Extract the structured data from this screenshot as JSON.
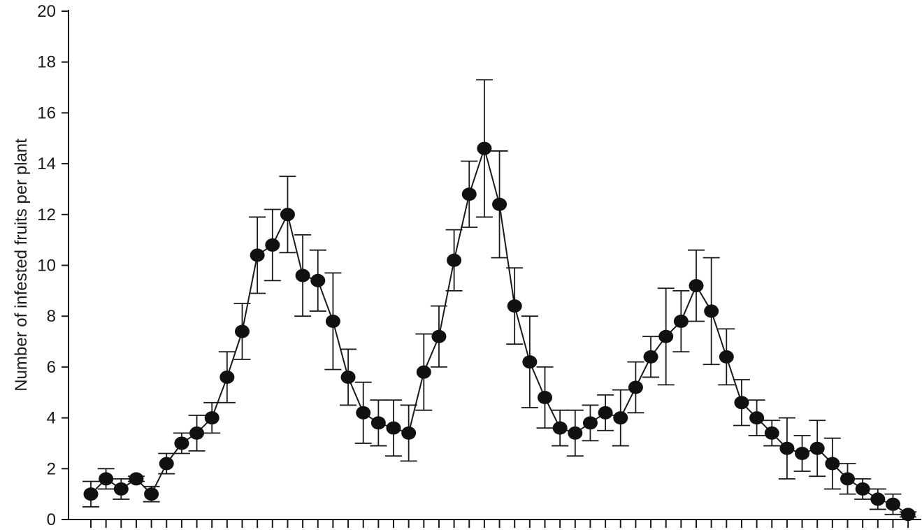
{
  "chart_data": {
    "type": "line",
    "title": "",
    "xlabel": "",
    "ylabel": "Number of infested fruits per plant",
    "ylim": [
      0,
      20
    ],
    "yticks": [
      "0",
      "2",
      "4",
      "6",
      "8",
      "10",
      "12",
      "14",
      "16",
      "18",
      "20"
    ],
    "grid": false,
    "legend": "none",
    "colors": {
      "line": "#1a1a1a",
      "marker": "#111111",
      "axis": "#1a1a1a"
    },
    "series": [
      {
        "values": [
          1.0,
          1.6,
          1.2,
          1.6,
          1.0,
          2.2,
          3.0,
          3.4,
          4.0,
          5.6,
          7.4,
          10.4,
          10.8,
          12.0,
          9.6,
          9.4,
          7.8,
          5.6,
          4.2,
          3.8,
          3.6,
          3.4,
          5.8,
          7.2,
          10.2,
          12.8,
          14.6,
          12.4,
          8.4,
          6.2,
          4.8,
          3.6,
          3.4,
          3.8,
          4.2,
          4.0,
          5.2,
          6.4,
          7.2,
          7.8,
          9.2,
          8.2,
          6.4,
          4.6,
          4.0,
          3.4,
          2.8,
          2.6,
          2.8,
          2.2,
          1.6,
          1.2,
          0.8,
          0.6,
          0.2
        ],
        "error": [
          0.5,
          0.4,
          0.4,
          0.1,
          0.3,
          0.4,
          0.4,
          0.7,
          0.6,
          1.0,
          1.1,
          1.5,
          1.4,
          1.5,
          1.6,
          1.2,
          1.9,
          1.1,
          1.2,
          0.9,
          1.1,
          1.1,
          1.5,
          1.2,
          1.2,
          1.3,
          2.7,
          2.1,
          1.5,
          1.8,
          1.2,
          0.7,
          0.9,
          0.7,
          0.7,
          1.1,
          1.0,
          0.8,
          1.9,
          1.2,
          1.4,
          2.1,
          1.1,
          0.9,
          0.7,
          0.5,
          1.2,
          0.7,
          1.1,
          1.0,
          0.6,
          0.4,
          0.4,
          0.4,
          0.1
        ]
      }
    ]
  }
}
